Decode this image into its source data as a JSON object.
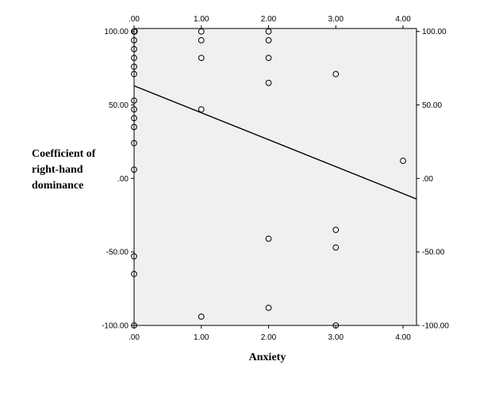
{
  "chart_data": {
    "type": "scatter",
    "xlabel": "Anxiety",
    "ylabel_lines": [
      "Coefficient of",
      "right-hand",
      "dominance"
    ],
    "xlim": [
      0,
      4.2
    ],
    "ylim": [
      -100,
      102
    ],
    "x_ticks": [
      0,
      1,
      2,
      3,
      4
    ],
    "y_ticks": [
      100,
      50,
      0,
      -50,
      -100
    ],
    "x_tick_labels": [
      ".00",
      "1.00",
      "2.00",
      "3.00",
      "4.00"
    ],
    "y_tick_labels": [
      "100.00",
      "50.00",
      ".00",
      "-50.00",
      "-100.00"
    ],
    "grid": false,
    "colors": {
      "plot_background": "#f0f0f0",
      "marker_stroke": "#000000",
      "line": "#000000"
    },
    "points": [
      {
        "x": 0,
        "y": 100
      },
      {
        "x": 0,
        "y": 100
      },
      {
        "x": 0,
        "y": 94
      },
      {
        "x": 0,
        "y": 88
      },
      {
        "x": 0,
        "y": 82
      },
      {
        "x": 0,
        "y": 76
      },
      {
        "x": 0,
        "y": 71
      },
      {
        "x": 0,
        "y": 53
      },
      {
        "x": 0,
        "y": 47
      },
      {
        "x": 0,
        "y": 41
      },
      {
        "x": 0,
        "y": 35
      },
      {
        "x": 0,
        "y": 24
      },
      {
        "x": 0,
        "y": 6
      },
      {
        "x": 0,
        "y": -53
      },
      {
        "x": 0,
        "y": -65
      },
      {
        "x": 0,
        "y": -100
      },
      {
        "x": 1,
        "y": 100
      },
      {
        "x": 1,
        "y": 94
      },
      {
        "x": 1,
        "y": 82
      },
      {
        "x": 1,
        "y": 47
      },
      {
        "x": 1,
        "y": -94
      },
      {
        "x": 2,
        "y": 100
      },
      {
        "x": 2,
        "y": 94
      },
      {
        "x": 2,
        "y": 82
      },
      {
        "x": 2,
        "y": 65
      },
      {
        "x": 2,
        "y": -41
      },
      {
        "x": 2,
        "y": -88
      },
      {
        "x": 3,
        "y": 71
      },
      {
        "x": 3,
        "y": -35
      },
      {
        "x": 3,
        "y": -47
      },
      {
        "x": 3,
        "y": -100
      },
      {
        "x": 4,
        "y": 12
      }
    ],
    "fit_line": {
      "x1": 0,
      "y1": 63,
      "x2": 4.2,
      "y2": -14
    }
  }
}
